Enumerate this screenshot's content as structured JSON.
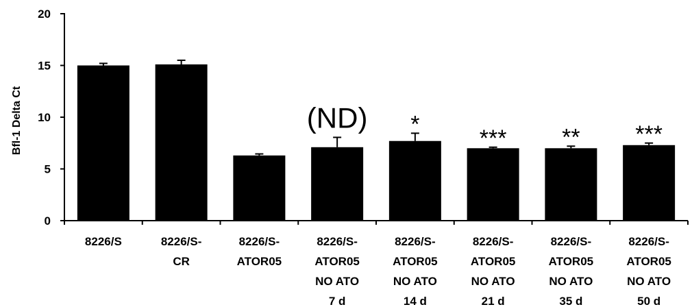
{
  "chart_data": {
    "type": "bar",
    "ylabel": "Bfl-1 Delta Ct",
    "xlabel": "",
    "ylim": [
      0,
      20
    ],
    "yticks": [
      0,
      5,
      10,
      15,
      20
    ],
    "grid": false,
    "legend": "none",
    "bar_color": "#000000",
    "categories": [
      [
        "8226/S"
      ],
      [
        "8226/S-",
        "CR"
      ],
      [
        "8226/S-",
        "ATOR05"
      ],
      [
        "8226/S-",
        "ATOR05",
        "NO ATO",
        "7 d"
      ],
      [
        "8226/S-",
        "ATOR05",
        "NO ATO",
        "14 d"
      ],
      [
        "8226/S-",
        "ATOR05",
        "NO ATO",
        "21 d"
      ],
      [
        "8226/S-",
        "ATOR05",
        "NO ATO",
        "35 d"
      ],
      [
        "8226/S-",
        "ATOR05",
        "NO ATO",
        "50 d"
      ]
    ],
    "values": [
      15.0,
      15.1,
      6.3,
      7.1,
      7.7,
      7.0,
      7.0,
      7.3
    ],
    "errors": [
      0.2,
      0.4,
      0.15,
      0.95,
      0.75,
      0.1,
      0.2,
      0.2
    ],
    "annotations": [
      "",
      "",
      "",
      "(ND)",
      "*",
      "***",
      "**",
      "***"
    ]
  }
}
